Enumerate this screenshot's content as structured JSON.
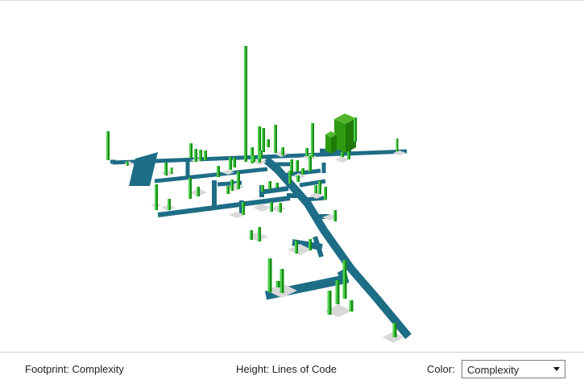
{
  "legend": {
    "footprint": "Footprint: Complexity",
    "height": "Height: Lines of Code",
    "color_label": "Color:",
    "color_selected": "Complexity"
  },
  "colors": {
    "street": "#1e6d86",
    "street_dark": "#185a70",
    "plot": "#d9d9d9",
    "building": "#22b422",
    "building_dark": "#148c14",
    "building_light": "#4fd04f",
    "large_building": "#2e9a10",
    "large_building_dark": "#1f7a08",
    "large_building_light": "#52b62a"
  },
  "icons": {
    "dropdown": "chevron-down-icon"
  }
}
